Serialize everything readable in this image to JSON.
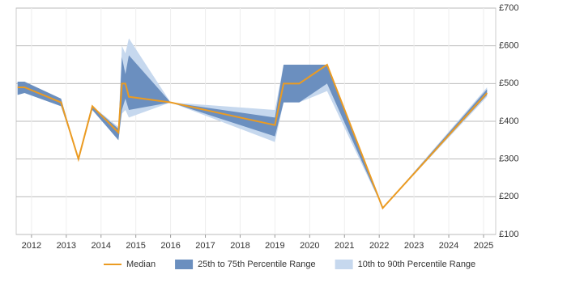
{
  "chart_data": {
    "type": "line",
    "x": [
      2011.6,
      2011.8,
      2012.85,
      2013.35,
      2013.75,
      2014.5,
      2014.6,
      2014.7,
      2014.8,
      2016,
      2019,
      2019.25,
      2019.7,
      2020.5,
      2022.1,
      2025.1
    ],
    "series": [
      {
        "name": "10th to 90th Percentile Range",
        "color": "#c6d8ee",
        "band": true,
        "lower": [
          470,
          475,
          440,
          300,
          430,
          350,
          420,
          430,
          410,
          450,
          345,
          450,
          450,
          480,
          170,
          465
        ],
        "upper": [
          505,
          505,
          460,
          300,
          440,
          385,
          600,
          580,
          620,
          450,
          430,
          550,
          550,
          550,
          170,
          490
        ]
      },
      {
        "name": "25th to 75th Percentile Range",
        "color": "#6b8fbf",
        "band": true,
        "lower": [
          470,
          475,
          440,
          300,
          430,
          350,
          430,
          460,
          430,
          450,
          360,
          450,
          450,
          500,
          170,
          470
        ],
        "upper": [
          505,
          505,
          460,
          300,
          440,
          380,
          570,
          525,
          575,
          450,
          410,
          550,
          550,
          550,
          170,
          485
        ]
      },
      {
        "name": "Median",
        "color": "#eb9b22",
        "values": [
          490,
          490,
          450,
          300,
          440,
          370,
          500,
          500,
          465,
          450,
          390,
          500,
          500,
          550,
          170,
          475
        ]
      }
    ],
    "xlim": [
      2011.56,
      2025.35
    ],
    "xticks": [
      2012,
      2013,
      2014,
      2015,
      2016,
      2017,
      2018,
      2019,
      2020,
      2021,
      2022,
      2023,
      2024,
      2025
    ],
    "ylim": [
      100,
      700
    ],
    "yticks": [
      {
        "value": 100,
        "label": "£100"
      },
      {
        "value": 200,
        "label": "£200"
      },
      {
        "value": 300,
        "label": "£300"
      },
      {
        "value": 400,
        "label": "£400"
      },
      {
        "value": 500,
        "label": "£500"
      },
      {
        "value": 600,
        "label": "£600"
      },
      {
        "value": 700,
        "label": "£700"
      }
    ],
    "grid": true,
    "legend": "bottom"
  }
}
